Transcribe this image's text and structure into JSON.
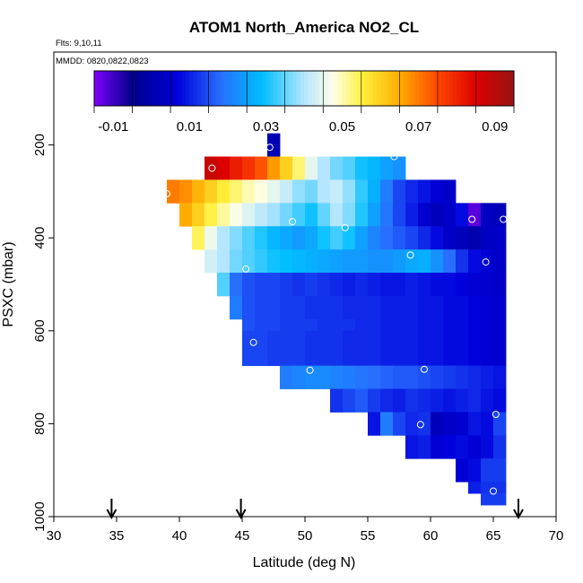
{
  "chart_data": {
    "type": "heatmap",
    "title": "ATOM1 North_America NO2_CL",
    "flights_label": "Flts: 9,10,11",
    "dates_label": "MMDD: 0820,0822,0823",
    "xlabel": "Latitude (deg N)",
    "ylabel": "PSXC (mbar)",
    "xlim": [
      30,
      70
    ],
    "ylim": [
      1000,
      0
    ],
    "xticks": [
      30,
      35,
      40,
      45,
      50,
      55,
      60,
      65,
      70
    ],
    "yticks": [
      200,
      400,
      600,
      800,
      1000
    ],
    "colorbar": {
      "min": -0.015,
      "max": 0.095,
      "tick_values": [
        -0.01,
        0.01,
        0.03,
        0.05,
        0.07,
        0.09
      ],
      "tick_labels": [
        "-0.01",
        "0.01",
        "0.03",
        "0.05",
        "0.07",
        "0.09"
      ]
    },
    "cell": {
      "lat_width": 1.0,
      "pressure_height": 25
    },
    "arrows_lat": [
      34.6,
      44.9,
      67.0
    ],
    "markers": [
      [
        47.2,
        205
      ],
      [
        42.6,
        250
      ],
      [
        57.1,
        225
      ],
      [
        39.0,
        305
      ],
      [
        49.0,
        365
      ],
      [
        53.2,
        378
      ],
      [
        63.3,
        360
      ],
      [
        65.8,
        360
      ],
      [
        58.4,
        437
      ],
      [
        64.4,
        452
      ],
      [
        45.3,
        467
      ],
      [
        45.9,
        625
      ],
      [
        50.4,
        685
      ],
      [
        59.5,
        683
      ],
      [
        59.2,
        802
      ],
      [
        65.2,
        780
      ],
      [
        65.0,
        945
      ]
    ],
    "rows": [
      {
        "p": 175,
        "start": 47,
        "values": [
          0.001
        ]
      },
      {
        "p": 200,
        "start": 47,
        "values": [
          0.001
        ]
      },
      {
        "p": 225,
        "start": 42,
        "values": [
          0.088,
          0.085,
          0.081,
          0.078,
          0.074,
          0.067,
          0.06,
          0.053,
          0.045,
          0.04,
          0.036,
          0.034,
          0.03,
          0.028,
          0.025,
          0.023
        ]
      },
      {
        "p": 250,
        "start": 42,
        "values": [
          0.088,
          0.085,
          0.081,
          0.078,
          0.074,
          0.067,
          0.06,
          0.053,
          0.045,
          0.04,
          0.036,
          0.034,
          0.03,
          0.028,
          0.025,
          0.023
        ]
      },
      {
        "p": 275,
        "start": 39,
        "values": [
          0.07,
          0.068,
          0.064,
          0.06,
          0.056,
          0.053,
          0.05,
          0.048,
          0.045,
          0.042,
          0.038,
          0.036,
          0.04,
          0.042,
          0.038,
          0.032,
          0.027,
          0.02,
          0.014,
          0.011,
          0.009,
          0.006,
          0.004
        ]
      },
      {
        "p": 300,
        "start": 39,
        "values": [
          0.07,
          0.068,
          0.064,
          0.06,
          0.056,
          0.053,
          0.05,
          0.048,
          0.045,
          0.042,
          0.038,
          0.036,
          0.04,
          0.042,
          0.038,
          0.032,
          0.027,
          0.02,
          0.014,
          0.011,
          0.009,
          0.006,
          0.004
        ]
      },
      {
        "p": 325,
        "start": 40,
        "values": [
          0.065,
          0.06,
          0.055,
          0.051,
          0.047,
          0.044,
          0.041,
          0.039,
          0.036,
          0.033,
          0.03,
          0.035,
          0.04,
          0.037,
          0.031,
          0.025,
          0.019,
          0.014,
          0.01,
          0.005,
          0.002,
          0.004,
          0.008,
          -0.012,
          0.003,
          0.002
        ]
      },
      {
        "p": 350,
        "start": 40,
        "values": [
          0.065,
          0.06,
          0.055,
          0.051,
          0.047,
          0.044,
          0.041,
          0.039,
          0.036,
          0.033,
          0.03,
          0.035,
          0.04,
          0.037,
          0.031,
          0.025,
          0.019,
          0.014,
          0.01,
          0.005,
          0.002,
          0.004,
          0.008,
          -0.012,
          0.003,
          0.002
        ]
      },
      {
        "p": 375,
        "start": 41,
        "values": [
          0.054,
          0.046,
          0.04,
          0.037,
          0.034,
          0.031,
          0.028,
          0.026,
          0.024,
          0.026,
          0.03,
          0.033,
          0.03,
          0.025,
          0.021,
          0.018,
          0.016,
          0.014,
          0.011,
          0.008,
          0.004,
          0.002,
          0.0,
          0.003,
          0.004
        ]
      },
      {
        "p": 400,
        "start": 41,
        "values": [
          0.054,
          0.046,
          0.04,
          0.037,
          0.034,
          0.031,
          0.028,
          0.026,
          0.024,
          0.026,
          0.03,
          0.033,
          0.03,
          0.025,
          0.021,
          0.018,
          0.016,
          0.014,
          0.011,
          0.008,
          0.004,
          0.002,
          0.0,
          0.003,
          0.004
        ]
      },
      {
        "p": 425,
        "start": 42,
        "values": [
          0.043,
          0.04,
          0.036,
          0.034,
          0.032,
          0.03,
          0.029,
          0.028,
          0.027,
          0.026,
          0.025,
          0.024,
          0.024,
          0.023,
          0.023,
          0.024,
          0.026,
          0.027,
          0.023,
          0.018,
          0.012,
          0.008,
          0.006,
          0.004
        ]
      },
      {
        "p": 450,
        "start": 42,
        "values": [
          0.043,
          0.04,
          0.036,
          0.034,
          0.032,
          0.03,
          0.029,
          0.028,
          0.027,
          0.026,
          0.025,
          0.024,
          0.024,
          0.023,
          0.023,
          0.024,
          0.026,
          0.027,
          0.023,
          0.018,
          0.012,
          0.008,
          0.006,
          0.004
        ]
      },
      {
        "p": 475,
        "start": 43,
        "values": [
          0.034,
          0.018,
          0.015,
          0.014,
          0.014,
          0.013,
          0.012,
          0.013,
          0.012,
          0.011,
          0.01,
          0.011,
          0.01,
          0.009,
          0.009,
          0.01,
          0.009,
          0.008,
          0.008,
          0.007,
          0.006,
          0.005,
          0.004
        ]
      },
      {
        "p": 500,
        "start": 43,
        "values": [
          0.034,
          0.018,
          0.015,
          0.014,
          0.014,
          0.013,
          0.012,
          0.013,
          0.012,
          0.011,
          0.01,
          0.011,
          0.01,
          0.009,
          0.009,
          0.01,
          0.009,
          0.008,
          0.008,
          0.007,
          0.006,
          0.005,
          0.004
        ]
      },
      {
        "p": 525,
        "start": 44,
        "values": [
          0.02,
          0.015,
          0.014,
          0.014,
          0.013,
          0.013,
          0.012,
          0.012,
          0.012,
          0.011,
          0.011,
          0.011,
          0.01,
          0.01,
          0.01,
          0.009,
          0.009,
          0.008,
          0.008,
          0.007,
          0.006,
          0.005
        ]
      },
      {
        "p": 550,
        "start": 44,
        "values": [
          0.02,
          0.015,
          0.014,
          0.014,
          0.013,
          0.013,
          0.012,
          0.012,
          0.012,
          0.011,
          0.011,
          0.011,
          0.01,
          0.01,
          0.01,
          0.009,
          0.009,
          0.008,
          0.008,
          0.007,
          0.006,
          0.005
        ]
      },
      {
        "p": 575,
        "start": 45,
        "values": [
          0.015,
          0.014,
          0.014,
          0.013,
          0.013,
          0.013,
          0.012,
          0.012,
          0.012,
          0.011,
          0.011,
          0.01,
          0.01,
          0.01,
          0.009,
          0.009,
          0.008,
          0.008,
          0.007,
          0.006,
          0.005
        ]
      },
      {
        "p": 600,
        "start": 45,
        "values": [
          0.014,
          0.014,
          0.013,
          0.013,
          0.013,
          0.012,
          0.012,
          0.012,
          0.011,
          0.011,
          0.011,
          0.01,
          0.01,
          0.01,
          0.009,
          0.009,
          0.008,
          0.008,
          0.007,
          0.006,
          0.005
        ]
      },
      {
        "p": 625,
        "start": 45,
        "values": [
          0.014,
          0.014,
          0.013,
          0.013,
          0.013,
          0.012,
          0.012,
          0.012,
          0.011,
          0.011,
          0.011,
          0.01,
          0.01,
          0.01,
          0.009,
          0.009,
          0.008,
          0.008,
          0.007,
          0.006,
          0.005
        ]
      },
      {
        "p": 650,
        "start": 45,
        "values": [
          0.014,
          0.014,
          0.013,
          0.013,
          0.013,
          0.012,
          0.012,
          0.012,
          0.011,
          0.011,
          0.011,
          0.01,
          0.01,
          0.01,
          0.009,
          0.009,
          0.008,
          0.008,
          0.007,
          0.006,
          0.005
        ]
      },
      {
        "p": 675,
        "start": 48,
        "values": [
          0.02,
          0.021,
          0.022,
          0.022,
          0.021,
          0.02,
          0.019,
          0.018,
          0.017,
          0.016,
          0.016,
          0.015,
          0.014,
          0.013,
          0.012,
          0.011,
          0.01,
          0.009
        ]
      },
      {
        "p": 700,
        "start": 48,
        "values": [
          0.02,
          0.021,
          0.022,
          0.022,
          0.021,
          0.02,
          0.019,
          0.018,
          0.017,
          0.016,
          0.016,
          0.015,
          0.014,
          0.013,
          0.012,
          0.011,
          0.01,
          0.009
        ]
      },
      {
        "p": 725,
        "start": 52,
        "values": [
          0.012,
          0.014,
          0.016,
          0.013,
          0.011,
          0.01,
          0.012,
          0.011,
          0.01,
          0.009,
          0.01,
          0.011,
          0.009,
          0.008
        ]
      },
      {
        "p": 750,
        "start": 52,
        "values": [
          0.012,
          0.014,
          0.016,
          0.013,
          0.011,
          0.01,
          0.012,
          0.011,
          0.01,
          0.009,
          0.01,
          0.011,
          0.009,
          0.008
        ]
      },
      {
        "p": 775,
        "start": 55,
        "values": [
          0.009,
          0.02,
          0.014,
          0.011,
          0.012,
          0.002,
          0.004,
          0.005,
          0.009,
          0.008,
          0.014
        ]
      },
      {
        "p": 800,
        "start": 55,
        "values": [
          0.009,
          0.02,
          0.014,
          0.011,
          0.012,
          0.002,
          0.004,
          0.005,
          0.009,
          0.008,
          0.014
        ]
      },
      {
        "p": 825,
        "start": 58,
        "values": [
          0.009,
          0.01,
          0.006,
          0.007,
          0.008,
          0.006,
          0.008,
          0.012
        ]
      },
      {
        "p": 850,
        "start": 58,
        "values": [
          0.009,
          0.01,
          0.006,
          0.007,
          0.008,
          0.006,
          0.008,
          0.012
        ]
      },
      {
        "p": 875,
        "start": 62,
        "values": [
          0.006,
          0.008,
          0.013,
          0.013
        ]
      },
      {
        "p": 900,
        "start": 62,
        "values": [
          0.006,
          0.008,
          0.013,
          0.013
        ]
      },
      {
        "p": 925,
        "start": 63,
        "values": [
          0.01,
          0.012,
          0.012
        ]
      },
      {
        "p": 950,
        "start": 64,
        "values": [
          0.013,
          0.013
        ]
      }
    ]
  }
}
